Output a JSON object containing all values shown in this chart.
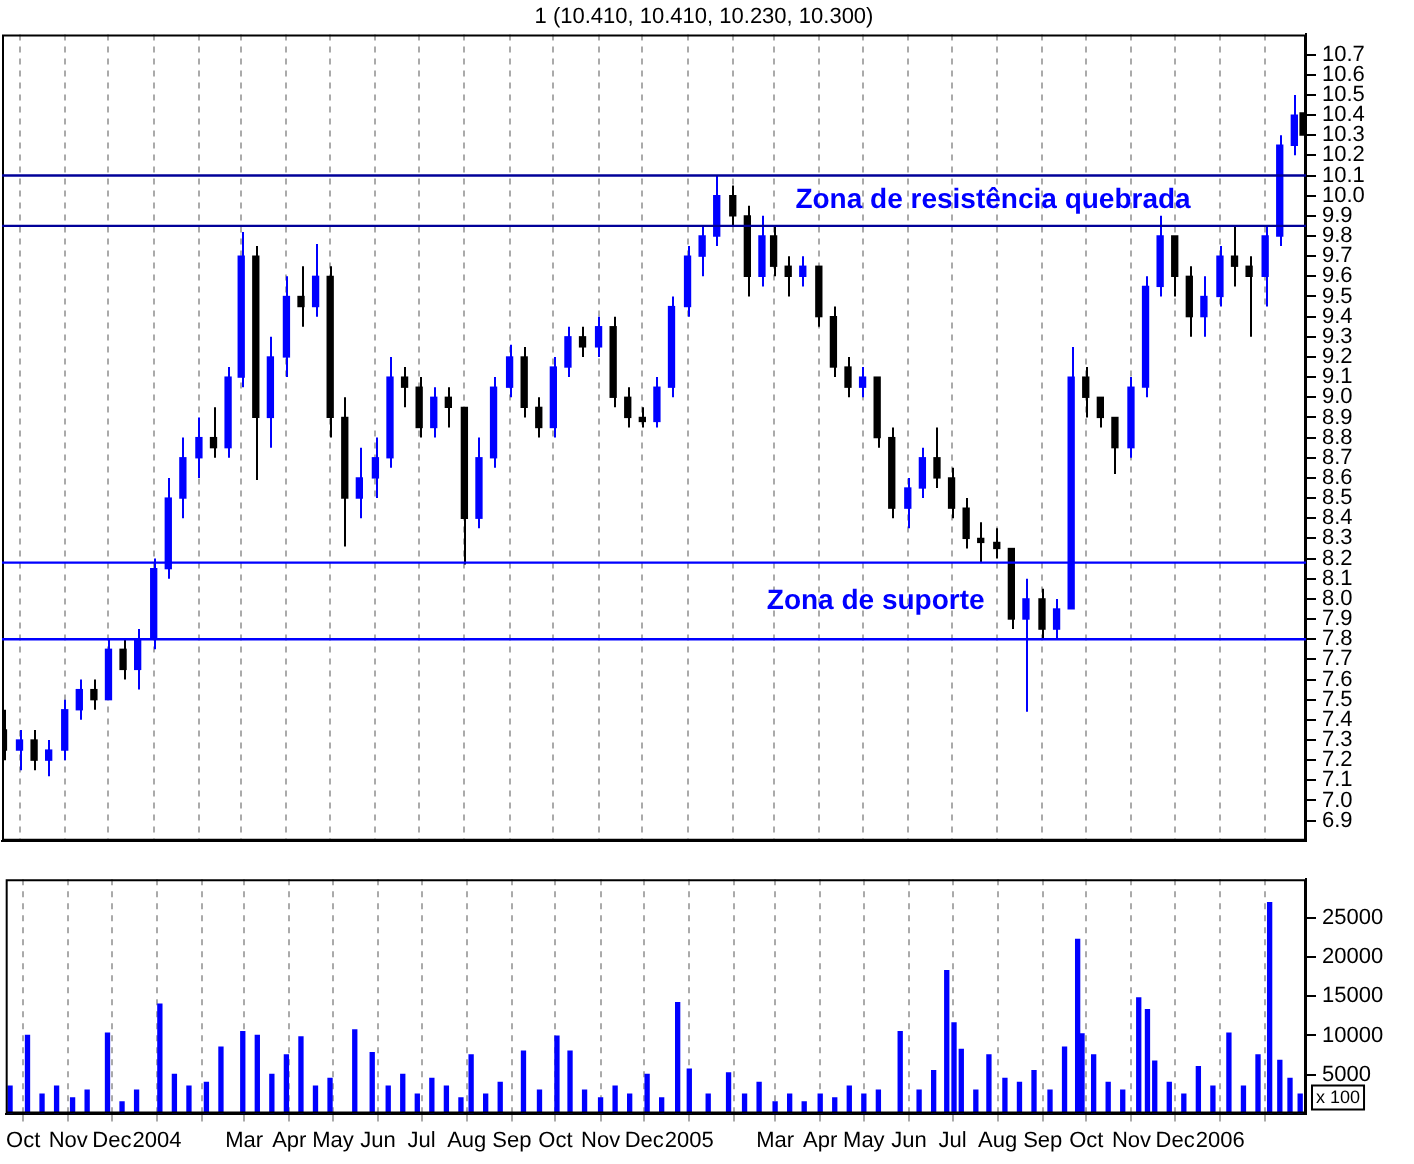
{
  "chart_data": [
    {
      "type": "candlestick",
      "title": "1 (10.410, 10.410, 10.230, 10.300)",
      "tick_labels": "y",
      "grid": "x",
      "legend": false,
      "xlim": [
        "2003-09-19",
        "2006-03-01"
      ],
      "xticks": [
        {
          "value": "2003-10",
          "label": null
        },
        {
          "value": "2003-11",
          "label": null
        },
        {
          "value": "2003-12",
          "label": null
        },
        {
          "value": "2004-01",
          "label": null
        },
        {
          "value": "2004-02",
          "label": null
        },
        {
          "value": "2004-03",
          "label": null
        },
        {
          "value": "2004-04",
          "label": null
        },
        {
          "value": "2004-05",
          "label": null
        },
        {
          "value": "2004-06",
          "label": null
        },
        {
          "value": "2004-07",
          "label": null
        },
        {
          "value": "2004-08",
          "label": null
        },
        {
          "value": "2004-09",
          "label": null
        },
        {
          "value": "2004-10",
          "label": null
        },
        {
          "value": "2004-11",
          "label": null
        },
        {
          "value": "2004-12",
          "label": null
        },
        {
          "value": "2005-01",
          "label": null
        },
        {
          "value": "2005-02",
          "label": null
        },
        {
          "value": "2005-03",
          "label": null
        },
        {
          "value": "2005-04",
          "label": null
        },
        {
          "value": "2005-05",
          "label": null
        },
        {
          "value": "2005-06",
          "label": null
        },
        {
          "value": "2005-07",
          "label": null
        },
        {
          "value": "2005-08",
          "label": null
        },
        {
          "value": "2005-09",
          "label": null
        },
        {
          "value": "2005-10",
          "label": null
        },
        {
          "value": "2005-11",
          "label": null
        },
        {
          "value": "2005-12",
          "label": null
        },
        {
          "value": "2006-01",
          "label": null
        },
        {
          "value": "2006-02",
          "label": null
        }
      ],
      "ylim": [
        6.8,
        10.8
      ],
      "yticks": [
        6.9,
        {
          "value": 7,
          "label": "7.0"
        },
        7.1,
        7.2,
        7.3,
        7.4,
        7.5,
        7.6,
        7.7,
        7.8,
        7.9,
        {
          "value": 8,
          "label": "8.0"
        },
        8.1,
        8.2,
        8.3,
        8.4,
        8.5,
        8.6,
        8.7,
        8.8,
        8.9,
        {
          "value": 9,
          "label": "9.0"
        },
        9.1,
        9.2,
        9.3,
        9.4,
        9.5,
        9.6,
        9.7,
        9.8,
        9.9,
        {
          "value": 10,
          "label": "10.0"
        },
        10.1,
        10.2,
        10.3,
        10.4,
        10.5,
        10.6,
        10.7
      ],
      "x": [
        "2003-09-20",
        "2003-10-01",
        "2003-10-11",
        "2003-10-21",
        "2003-11-01",
        "2003-11-11",
        "2003-11-21",
        "2003-12-01",
        "2003-12-11",
        "2003-12-21",
        "2004-01-01",
        "2004-01-11",
        "2004-01-21",
        "2004-02-01",
        "2004-02-11",
        "2004-02-21",
        "2004-03-01",
        "2004-03-11",
        "2004-03-21",
        "2004-04-01",
        "2004-04-11",
        "2004-04-21",
        "2004-05-01",
        "2004-05-11",
        "2004-05-21",
        "2004-06-01",
        "2004-06-11",
        "2004-06-21",
        "2004-07-01",
        "2004-07-11",
        "2004-07-21",
        "2004-08-01",
        "2004-08-11",
        "2004-08-21",
        "2004-09-01",
        "2004-09-11",
        "2004-09-21",
        "2004-10-01",
        "2004-10-11",
        "2004-10-21",
        "2004-11-01",
        "2004-11-11",
        "2004-11-21",
        "2004-12-01",
        "2004-12-11",
        "2004-12-21",
        "2005-01-01",
        "2005-01-11",
        "2005-01-21",
        "2005-02-01",
        "2005-02-11",
        "2005-02-21",
        "2005-03-01",
        "2005-03-11",
        "2005-03-21",
        "2005-04-01",
        "2005-04-11",
        "2005-04-21",
        "2005-05-01",
        "2005-05-11",
        "2005-05-21",
        "2005-06-01",
        "2005-06-11",
        "2005-06-21",
        "2005-07-01",
        "2005-07-11",
        "2005-07-21",
        "2005-08-01",
        "2005-08-11",
        "2005-08-21",
        "2005-09-01",
        "2005-09-11",
        "2005-09-21",
        "2005-10-01",
        "2005-10-11",
        "2005-10-21",
        "2005-11-01",
        "2005-11-11",
        "2005-11-21",
        "2005-12-01",
        "2005-12-11",
        "2005-12-21",
        "2006-01-01",
        "2006-01-11",
        "2006-01-21",
        "2006-02-01",
        "2006-02-11",
        "2006-02-21",
        "2006-02-27"
      ],
      "ohlc": [
        [
          7.35,
          7.45,
          7.2,
          7.25
        ],
        [
          7.25,
          7.35,
          7.15,
          7.3
        ],
        [
          7.3,
          7.35,
          7.15,
          7.2
        ],
        [
          7.2,
          7.3,
          7.12,
          7.25
        ],
        [
          7.25,
          7.5,
          7.2,
          7.45
        ],
        [
          7.45,
          7.6,
          7.4,
          7.55
        ],
        [
          7.55,
          7.6,
          7.45,
          7.5
        ],
        [
          7.5,
          7.8,
          7.5,
          7.75
        ],
        [
          7.75,
          7.8,
          7.6,
          7.65
        ],
        [
          7.65,
          7.85,
          7.55,
          7.8
        ],
        [
          7.8,
          8.2,
          7.75,
          8.15
        ],
        [
          8.15,
          8.6,
          8.1,
          8.5
        ],
        [
          8.5,
          8.8,
          8.4,
          8.7
        ],
        [
          8.7,
          8.9,
          8.6,
          8.8
        ],
        [
          8.8,
          8.95,
          8.7,
          8.75
        ],
        [
          8.75,
          9.15,
          8.7,
          9.1
        ],
        [
          9.1,
          9.82,
          9.05,
          9.7
        ],
        [
          9.7,
          9.75,
          8.59,
          8.9
        ],
        [
          8.9,
          9.3,
          8.75,
          9.2
        ],
        [
          9.2,
          9.6,
          9.1,
          9.5
        ],
        [
          9.5,
          9.65,
          9.35,
          9.45
        ],
        [
          9.45,
          9.76,
          9.4,
          9.6
        ],
        [
          9.6,
          9.65,
          8.8,
          8.9
        ],
        [
          8.9,
          9.0,
          8.26,
          8.5
        ],
        [
          8.5,
          8.75,
          8.4,
          8.6
        ],
        [
          8.6,
          8.8,
          8.5,
          8.7
        ],
        [
          8.7,
          9.2,
          8.65,
          9.1
        ],
        [
          9.1,
          9.15,
          8.95,
          9.05
        ],
        [
          9.05,
          9.1,
          8.8,
          8.85
        ],
        [
          8.85,
          9.05,
          8.8,
          9.0
        ],
        [
          9.0,
          9.05,
          8.85,
          8.95
        ],
        [
          8.95,
          8.95,
          8.17,
          8.4
        ],
        [
          8.4,
          8.8,
          8.35,
          8.7
        ],
        [
          8.7,
          9.1,
          8.65,
          9.05
        ],
        [
          9.05,
          9.26,
          9.0,
          9.2
        ],
        [
          9.2,
          9.25,
          8.9,
          8.95
        ],
        [
          8.95,
          9.0,
          8.8,
          8.85
        ],
        [
          8.85,
          9.2,
          8.8,
          9.15
        ],
        [
          9.15,
          9.35,
          9.1,
          9.3
        ],
        [
          9.3,
          9.35,
          9.2,
          9.25
        ],
        [
          9.25,
          9.4,
          9.2,
          9.35
        ],
        [
          9.35,
          9.4,
          8.95,
          9.0
        ],
        [
          9.0,
          9.05,
          8.85,
          8.9
        ],
        [
          8.9,
          8.95,
          8.85,
          8.88
        ],
        [
          8.88,
          9.1,
          8.85,
          9.05
        ],
        [
          9.05,
          9.5,
          9.0,
          9.45
        ],
        [
          9.45,
          9.75,
          9.4,
          9.7
        ],
        [
          9.7,
          9.85,
          9.6,
          9.8
        ],
        [
          9.8,
          10.1,
          9.75,
          10.0
        ],
        [
          10.0,
          10.05,
          9.85,
          9.9
        ],
        [
          9.9,
          9.95,
          9.5,
          9.6
        ],
        [
          9.6,
          9.9,
          9.55,
          9.8
        ],
        [
          9.8,
          9.85,
          9.6,
          9.65
        ],
        [
          9.65,
          9.7,
          9.5,
          9.6
        ],
        [
          9.6,
          9.7,
          9.55,
          9.65
        ],
        [
          9.65,
          9.65,
          9.35,
          9.4
        ],
        [
          9.4,
          9.45,
          9.1,
          9.15
        ],
        [
          9.15,
          9.2,
          9.0,
          9.05
        ],
        [
          9.05,
          9.15,
          9.0,
          9.1
        ],
        [
          9.1,
          9.1,
          8.75,
          8.8
        ],
        [
          8.8,
          8.85,
          8.4,
          8.45
        ],
        [
          8.45,
          8.6,
          8.35,
          8.55
        ],
        [
          8.55,
          8.75,
          8.5,
          8.7
        ],
        [
          8.7,
          8.85,
          8.55,
          8.6
        ],
        [
          8.6,
          8.65,
          8.4,
          8.45
        ],
        [
          8.45,
          8.5,
          8.25,
          8.3
        ],
        [
          8.3,
          8.38,
          8.18,
          8.28
        ],
        [
          8.28,
          8.35,
          8.2,
          8.25
        ],
        [
          8.25,
          8.25,
          7.85,
          7.9
        ],
        [
          7.9,
          8.1,
          7.44,
          8.0
        ],
        [
          8.0,
          8.05,
          7.8,
          7.85
        ],
        [
          7.85,
          8.0,
          7.8,
          7.95
        ],
        [
          7.95,
          9.25,
          7.95,
          9.1
        ],
        [
          9.1,
          9.15,
          8.9,
          9.0
        ],
        [
          9.0,
          9.0,
          8.85,
          8.9
        ],
        [
          8.9,
          8.9,
          8.62,
          8.75
        ],
        [
          8.75,
          9.1,
          8.7,
          9.05
        ],
        [
          9.05,
          9.6,
          9.0,
          9.55
        ],
        [
          9.55,
          9.9,
          9.5,
          9.8
        ],
        [
          9.8,
          9.8,
          9.5,
          9.6
        ],
        [
          9.6,
          9.65,
          9.3,
          9.4
        ],
        [
          9.4,
          9.6,
          9.3,
          9.5
        ],
        [
          9.5,
          9.75,
          9.45,
          9.7
        ],
        [
          9.7,
          9.85,
          9.55,
          9.65
        ],
        [
          9.65,
          9.7,
          9.3,
          9.6
        ],
        [
          9.6,
          9.85,
          9.45,
          9.8
        ],
        [
          9.8,
          10.3,
          9.75,
          10.25
        ],
        [
          10.25,
          10.5,
          10.2,
          10.4
        ],
        [
          10.41,
          10.41,
          10.23,
          10.3
        ]
      ],
      "colors": [
        "#000000",
        "#0000ff",
        "#000000",
        "#0000ff",
        "#0000ff",
        "#0000ff",
        "#000000",
        "#0000ff",
        "#000000",
        "#0000ff",
        "#0000ff",
        "#0000ff",
        "#0000ff",
        "#0000ff",
        "#000000",
        "#0000ff",
        "#0000ff",
        "#000000",
        "#0000ff",
        "#0000ff",
        "#000000",
        "#0000ff",
        "#000000",
        "#000000",
        "#0000ff",
        "#0000ff",
        "#0000ff",
        "#000000",
        "#000000",
        "#0000ff",
        "#000000",
        "#000000",
        "#0000ff",
        "#0000ff",
        "#0000ff",
        "#000000",
        "#000000",
        "#0000ff",
        "#0000ff",
        "#000000",
        "#0000ff",
        "#000000",
        "#000000",
        "#000000",
        "#0000ff",
        "#0000ff",
        "#0000ff",
        "#0000ff",
        "#0000ff",
        "#000000",
        "#000000",
        "#0000ff",
        "#000000",
        "#000000",
        "#0000ff",
        "#000000",
        "#000000",
        "#000000",
        "#0000ff",
        "#000000",
        "#000000",
        "#0000ff",
        "#0000ff",
        "#000000",
        "#000000",
        "#000000",
        "#000000",
        "#000000",
        "#000000",
        "#0000ff",
        "#000000",
        "#0000ff",
        "#0000ff",
        "#000000",
        "#000000",
        "#000000",
        "#0000ff",
        "#0000ff",
        "#0000ff",
        "#000000",
        "#000000",
        "#0000ff",
        "#0000ff",
        "#000000",
        "#000000",
        "#0000ff",
        "#0000ff",
        "#0000ff",
        "#000000"
      ],
      "ref_lines": [
        {
          "axis": "y",
          "value": 10.1,
          "color": "#000099"
        },
        {
          "axis": "y",
          "value": 9.85,
          "color": "#000099"
        },
        {
          "axis": "y",
          "value": 8.18,
          "color": "#0000ff"
        },
        {
          "axis": "y",
          "value": 7.8,
          "color": "#0000ff"
        }
      ],
      "annotations": [
        "Zona de resistência quebrada",
        "Zona de suporte"
      ]
    },
    {
      "type": "bar",
      "grid": "x",
      "legend": false,
      "color": "#0000ff",
      "xlim": [
        "2003-09-19",
        "2006-03-01"
      ],
      "xticks": [
        {
          "value": "2003-10",
          "label": "Oct"
        },
        {
          "value": "2003-11",
          "label": "Nov"
        },
        {
          "value": "2003-12",
          "label": "Dec"
        },
        {
          "value": "2004-01",
          "label": "2004"
        },
        {
          "value": "2004-02",
          "label": null
        },
        {
          "value": "2004-03",
          "label": "Mar"
        },
        {
          "value": "2004-04",
          "label": "Apr"
        },
        {
          "value": "2004-05",
          "label": "May"
        },
        {
          "value": "2004-06",
          "label": "Jun"
        },
        {
          "value": "2004-07",
          "label": "Jul"
        },
        {
          "value": "2004-08",
          "label": "Aug"
        },
        {
          "value": "2004-09",
          "label": "Sep"
        },
        {
          "value": "2004-10",
          "label": "Oct"
        },
        {
          "value": "2004-11",
          "label": "Nov"
        },
        {
          "value": "2004-12",
          "label": "Dec"
        },
        {
          "value": "2005-01",
          "label": "2005"
        },
        {
          "value": "2005-02",
          "label": null
        },
        {
          "value": "2005-03",
          "label": "Mar"
        },
        {
          "value": "2005-04",
          "label": "Apr"
        },
        {
          "value": "2005-05",
          "label": "May"
        },
        {
          "value": "2005-06",
          "label": "Jun"
        },
        {
          "value": "2005-07",
          "label": "Jul"
        },
        {
          "value": "2005-08",
          "label": "Aug"
        },
        {
          "value": "2005-09",
          "label": "Sep"
        },
        {
          "value": "2005-10",
          "label": "Oct"
        },
        {
          "value": "2005-11",
          "label": "Nov"
        },
        {
          "value": "2005-12",
          "label": "Dec"
        },
        {
          "value": "2006-01",
          "label": "2006"
        },
        {
          "value": "2006-02",
          "label": null
        }
      ],
      "ylim": [
        0,
        30000
      ],
      "yticks": [
        5000,
        10000,
        15000,
        20000,
        25000
      ],
      "x": [
        "2003-09-22",
        "2003-10-04",
        "2003-10-14",
        "2003-10-24",
        "2003-11-04",
        "2003-11-14",
        "2003-11-28",
        "2003-12-08",
        "2003-12-18",
        "2004-01-03",
        "2004-01-13",
        "2004-01-23",
        "2004-02-04",
        "2004-02-14",
        "2004-02-29",
        "2004-03-10",
        "2004-03-20",
        "2004-03-30",
        "2004-04-09",
        "2004-04-19",
        "2004-04-29",
        "2004-05-16",
        "2004-05-28",
        "2004-06-08",
        "2004-06-18",
        "2004-06-28",
        "2004-07-08",
        "2004-07-18",
        "2004-07-28",
        "2004-08-04",
        "2004-08-14",
        "2004-08-24",
        "2004-09-09",
        "2004-09-20",
        "2004-10-02",
        "2004-10-11",
        "2004-10-21",
        "2004-11-01",
        "2004-11-11",
        "2004-11-21",
        "2004-12-03",
        "2004-12-13",
        "2004-12-24",
        "2005-01-01",
        "2005-01-14",
        "2005-01-28",
        "2005-02-08",
        "2005-02-18",
        "2005-03-01",
        "2005-03-11",
        "2005-03-21",
        "2005-04-01",
        "2005-04-11",
        "2005-04-21",
        "2005-05-01",
        "2005-05-11",
        "2005-05-26",
        "2005-06-08",
        "2005-06-18",
        "2005-06-27",
        "2005-07-02",
        "2005-07-07",
        "2005-07-17",
        "2005-07-26",
        "2005-08-06",
        "2005-08-16",
        "2005-08-26",
        "2005-09-06",
        "2005-09-16",
        "2005-09-25",
        "2005-09-28",
        "2005-10-06",
        "2005-10-16",
        "2005-10-26",
        "2005-11-06",
        "2005-11-12",
        "2005-11-17",
        "2005-11-27",
        "2005-12-07",
        "2005-12-17",
        "2005-12-27",
        "2006-01-07",
        "2006-01-17",
        "2006-01-27",
        "2006-02-04",
        "2006-02-11",
        "2006-02-18",
        "2006-02-25"
      ],
      "values": [
        3500,
        10000,
        2500,
        3500,
        2000,
        3000,
        10300,
        1500,
        3000,
        14000,
        5000,
        3500,
        4000,
        8500,
        10500,
        10000,
        5000,
        7500,
        9800,
        3500,
        4500,
        10700,
        7800,
        3500,
        5000,
        2500,
        4500,
        3500,
        2000,
        7500,
        2500,
        4000,
        8000,
        3000,
        9900,
        8000,
        3000,
        2000,
        3500,
        2500,
        5000,
        2000,
        14200,
        5700,
        2500,
        5200,
        2500,
        4000,
        1500,
        2500,
        1500,
        2500,
        2000,
        3500,
        2500,
        3000,
        10500,
        3000,
        5500,
        18300,
        11600,
        8200,
        3000,
        7500,
        4500,
        4000,
        5500,
        3000,
        8500,
        22300,
        10200,
        7500,
        4000,
        3000,
        14800,
        13300,
        6700,
        4000,
        2500,
        6000,
        3500,
        10300,
        3500,
        7500,
        27000,
        6800,
        4500,
        2500
      ],
      "annotations": [
        "x 100"
      ]
    }
  ]
}
